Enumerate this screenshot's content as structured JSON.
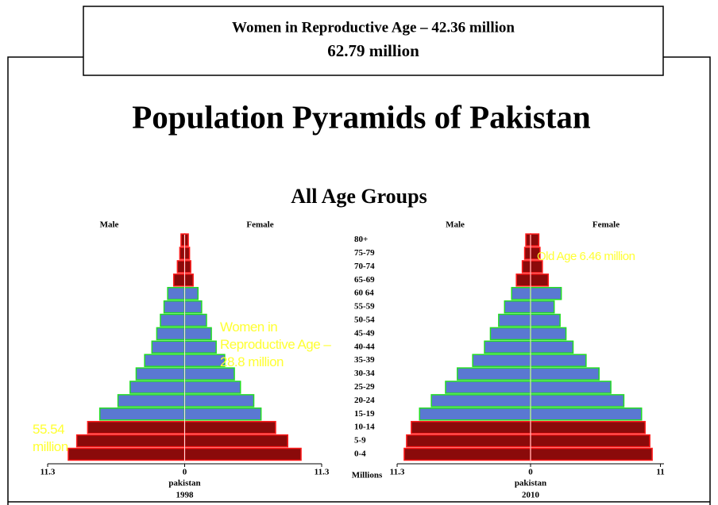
{
  "header": {
    "line1": "Women in Reproductive Age – 42.36 million",
    "line2": "62.79 million"
  },
  "title": "Population Pyramids of Pakistan",
  "subtitle": "All Age Groups",
  "age_groups": [
    "0-4",
    "5-9",
    "10-14",
    "15-19",
    "20-24",
    "25-29",
    "30-34",
    "35-39",
    "40-44",
    "45-49",
    "50-54",
    "55-59",
    "60 64",
    "65-69",
    "70-74",
    "75-79",
    "80+"
  ],
  "band_colors": [
    "#8b0a0a",
    "#8b0a0a",
    "#8b0a0a",
    "#5a78d2",
    "#5a78d2",
    "#5a78d2",
    "#5a78d2",
    "#5a78d2",
    "#5a78d2",
    "#5a78d2",
    "#5a78d2",
    "#5a78d2",
    "#5a78d2",
    "#8b0a0a",
    "#8b0a0a",
    "#8b0a0a",
    "#8b0a0a"
  ],
  "band_outlines": [
    "#ff1a1a",
    "#ff1a1a",
    "#ff1a1a",
    "#22dd22",
    "#22dd22",
    "#22dd22",
    "#22dd22",
    "#22dd22",
    "#22dd22",
    "#22dd22",
    "#22dd22",
    "#22dd22",
    "#22dd22",
    "#ff1a1a",
    "#ff1a1a",
    "#ff1a1a",
    "#ff1a1a"
  ],
  "unit_label": "Millions",
  "chart_data": [
    {
      "type": "pyramid",
      "xlabel": "pakistan",
      "year": "1998",
      "series": [
        {
          "name": "Male",
          "values": [
            9.6,
            8.9,
            8.0,
            7.0,
            5.5,
            4.5,
            4.0,
            3.3,
            2.7,
            2.3,
            2.0,
            1.7,
            1.4,
            0.9,
            0.6,
            0.4,
            0.3
          ]
        },
        {
          "name": "Female",
          "values": [
            9.6,
            8.5,
            7.5,
            6.3,
            5.7,
            4.6,
            4.1,
            3.3,
            2.6,
            2.2,
            1.8,
            1.4,
            1.1,
            0.7,
            0.5,
            0.4,
            0.3
          ]
        }
      ],
      "xlim": [
        -11.3,
        11.3
      ],
      "xticks": [
        {
          "value": -11.3,
          "label": "11.3"
        },
        0,
        11.3
      ],
      "annotations": [
        "Women in Reproductive Age – 28.8 million",
        "55.54 million"
      ]
    },
    {
      "type": "pyramid",
      "xlabel": "pakistan",
      "year": "2010",
      "series": [
        {
          "name": "Male",
          "values": [
            10.7,
            10.5,
            10.1,
            9.4,
            8.4,
            7.2,
            6.2,
            4.9,
            3.9,
            3.4,
            2.7,
            2.2,
            1.6,
            1.2,
            0.7,
            0.5,
            0.4
          ]
        },
        {
          "name": "Female",
          "values": [
            10.3,
            10.1,
            9.7,
            9.4,
            7.9,
            6.8,
            5.8,
            4.7,
            3.6,
            3.0,
            2.5,
            2.0,
            2.6,
            1.5,
            1.0,
            0.8,
            0.7
          ]
        }
      ],
      "xlim": [
        -11.3,
        11.3
      ],
      "xticks": [
        {
          "value": -11.3,
          "label": "11.3"
        },
        0,
        11
      ],
      "annotations": [
        "Old Age 6.46 million"
      ]
    }
  ]
}
